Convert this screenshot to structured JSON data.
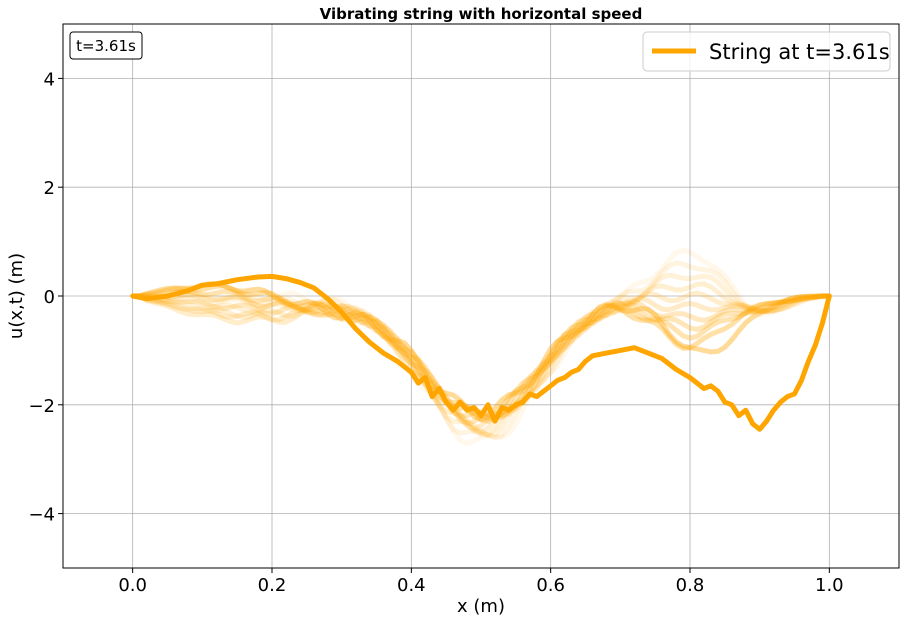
{
  "chart_data": {
    "type": "line",
    "title": "Vibrating string with horizontal speed",
    "xlabel": "x (m)",
    "ylabel": "u(x,t) (m)",
    "xlim": [
      -0.1,
      1.1
    ],
    "ylim": [
      -5,
      5
    ],
    "xticks": [
      0.0,
      0.2,
      0.4,
      0.6,
      0.8,
      1.0
    ],
    "xtick_labels": [
      "0.0",
      "0.2",
      "0.4",
      "0.6",
      "0.8",
      "1.0"
    ],
    "yticks": [
      -4,
      -2,
      0,
      2,
      4
    ],
    "ytick_labels": [
      "−4",
      "−2",
      "0",
      "2",
      "4"
    ],
    "grid": true,
    "legend_position": "top-right",
    "time_annotation": "t=3.61s",
    "color": "#FFA500",
    "current_series": {
      "name": "String at t=3.61s",
      "x": [
        0.0,
        0.02,
        0.05,
        0.08,
        0.1,
        0.12,
        0.15,
        0.18,
        0.2,
        0.22,
        0.24,
        0.26,
        0.28,
        0.3,
        0.32,
        0.34,
        0.36,
        0.38,
        0.4,
        0.41,
        0.42,
        0.43,
        0.44,
        0.45,
        0.46,
        0.47,
        0.48,
        0.49,
        0.5,
        0.51,
        0.52,
        0.53,
        0.54,
        0.55,
        0.56,
        0.57,
        0.58,
        0.59,
        0.6,
        0.61,
        0.62,
        0.63,
        0.64,
        0.65,
        0.66,
        0.68,
        0.7,
        0.72,
        0.74,
        0.76,
        0.78,
        0.8,
        0.81,
        0.82,
        0.83,
        0.84,
        0.85,
        0.86,
        0.87,
        0.88,
        0.89,
        0.9,
        0.91,
        0.92,
        0.93,
        0.94,
        0.95,
        0.96,
        0.97,
        0.98,
        0.99,
        1.0
      ],
      "y": [
        0.0,
        -0.05,
        0.0,
        0.1,
        0.2,
        0.22,
        0.3,
        0.35,
        0.36,
        0.32,
        0.25,
        0.15,
        -0.05,
        -0.3,
        -0.6,
        -0.85,
        -1.05,
        -1.2,
        -1.4,
        -1.6,
        -1.5,
        -1.85,
        -1.7,
        -1.95,
        -2.1,
        -1.95,
        -2.1,
        -2.05,
        -2.2,
        -2.0,
        -2.3,
        -2.05,
        -2.1,
        -2.0,
        -1.95,
        -1.8,
        -1.85,
        -1.75,
        -1.65,
        -1.55,
        -1.5,
        -1.4,
        -1.35,
        -1.2,
        -1.1,
        -1.05,
        -1.0,
        -0.95,
        -1.05,
        -1.15,
        -1.35,
        -1.5,
        -1.6,
        -1.7,
        -1.65,
        -1.75,
        -1.95,
        -2.0,
        -2.2,
        -2.1,
        -2.35,
        -2.45,
        -2.3,
        -2.1,
        -1.95,
        -1.85,
        -1.8,
        -1.55,
        -1.2,
        -0.9,
        -0.5,
        0.0
      ]
    },
    "history_series": [
      {
        "opacity": 0.08,
        "amp_hump": 0.0,
        "amp_trough": 2.7,
        "amp_right": 0.8,
        "right_mid": 0.8
      },
      {
        "opacity": 0.12,
        "amp_hump": -0.1,
        "amp_trough": 2.6,
        "amp_right": 0.6,
        "right_mid": 0.8
      },
      {
        "opacity": 0.15,
        "amp_hump": -0.2,
        "amp_trough": 2.5,
        "amp_right": 0.4,
        "right_mid": 0.8
      },
      {
        "opacity": 0.18,
        "amp_hump": -0.3,
        "amp_trough": 2.45,
        "amp_right": 0.2,
        "right_mid": 0.8
      },
      {
        "opacity": 0.2,
        "amp_hump": -0.4,
        "amp_trough": 2.4,
        "amp_right": 0.0,
        "right_mid": 0.8
      },
      {
        "opacity": 0.22,
        "amp_hump": -0.3,
        "amp_trough": 2.35,
        "amp_right": -0.2,
        "right_mid": 0.8
      },
      {
        "opacity": 0.25,
        "amp_hump": -0.15,
        "amp_trough": 2.3,
        "amp_right": -0.4,
        "right_mid": 0.8
      },
      {
        "opacity": 0.28,
        "amp_hump": 0.0,
        "amp_trough": 2.25,
        "amp_right": -0.55,
        "right_mid": 0.8
      },
      {
        "opacity": 0.3,
        "amp_hump": 0.1,
        "amp_trough": 2.2,
        "amp_right": -0.7,
        "right_mid": 0.8
      },
      {
        "opacity": 0.35,
        "amp_hump": 0.2,
        "amp_trough": 2.2,
        "amp_right": -0.9,
        "right_mid": 0.8
      },
      {
        "opacity": 0.4,
        "amp_hump": 0.25,
        "amp_trough": 2.15,
        "amp_right": -1.05,
        "right_mid": 0.82
      }
    ]
  }
}
